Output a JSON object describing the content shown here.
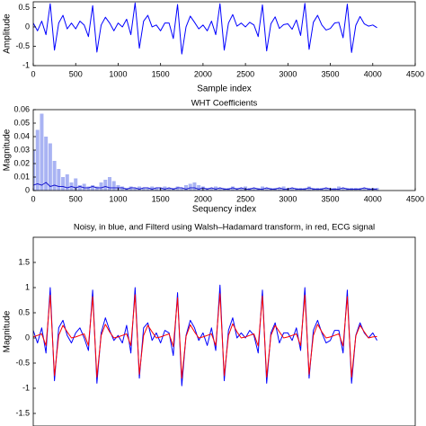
{
  "chart_data": [
    {
      "type": "line",
      "ylabel": "Amplitude",
      "xlabel": "Sample index",
      "xlim": [
        0,
        4500
      ],
      "xticks": [
        0,
        500,
        1000,
        1500,
        2000,
        2500,
        3000,
        3500,
        4000,
        4500
      ],
      "ylim": [
        -1,
        0.65
      ],
      "yticks": [
        -1,
        -0.5,
        0,
        0.5
      ],
      "grid": false,
      "x": [
        0,
        50,
        100,
        150,
        200,
        250,
        300,
        350,
        400,
        450,
        500,
        550,
        600,
        650,
        700,
        750,
        800,
        850,
        900,
        950,
        1000,
        1050,
        1100,
        1150,
        1200,
        1250,
        1300,
        1350,
        1400,
        1450,
        1500,
        1550,
        1600,
        1650,
        1700,
        1750,
        1800,
        1850,
        1900,
        1950,
        2000,
        2050,
        2100,
        2150,
        2200,
        2250,
        2300,
        2350,
        2400,
        2450,
        2500,
        2550,
        2600,
        2650,
        2700,
        2750,
        2800,
        2850,
        2900,
        2950,
        3000,
        3050,
        3100,
        3150,
        3200,
        3250,
        3300,
        3350,
        3400,
        3450,
        3500,
        3550,
        3600,
        3650,
        3700,
        3750,
        3800,
        3850,
        3900,
        3950,
        4000,
        4050
      ],
      "series": [
        {
          "color": "#0000ff",
          "mark": "line",
          "values": [
            0.1,
            -0.1,
            0.15,
            -0.2,
            0.6,
            -0.6,
            0.1,
            0.3,
            -0.05,
            0.1,
            -0.05,
            0.15,
            0.05,
            -0.25,
            0.55,
            -0.65,
            0.05,
            0.25,
            0.1,
            -0.1,
            0.1,
            0.0,
            0.2,
            -0.2,
            0.62,
            -0.55,
            0.15,
            0.3,
            0.0,
            0.05,
            -0.1,
            0.1,
            0.1,
            -0.3,
            0.58,
            -0.7,
            0.0,
            0.28,
            0.12,
            -0.05,
            0.05,
            -0.1,
            0.15,
            -0.2,
            0.6,
            -0.6,
            0.1,
            0.32,
            0.02,
            0.1,
            0.0,
            0.12,
            0.05,
            -0.25,
            0.57,
            -0.62,
            0.08,
            0.26,
            -0.04,
            0.06,
            0.08,
            -0.06,
            0.18,
            -0.22,
            0.61,
            -0.58,
            0.12,
            0.3,
            0.05,
            -0.08,
            -0.04,
            0.1,
            0.12,
            -0.28,
            0.59,
            -0.66,
            0.04,
            0.27,
            0.08,
            0.02,
            0.05,
            -0.02
          ]
        }
      ]
    },
    {
      "type": "line",
      "title": "WHT Coefficients",
      "ylabel": "Magnitude",
      "xlabel": "Sequency index",
      "xlim": [
        0,
        4500
      ],
      "xticks": [
        0,
        500,
        1000,
        1500,
        2000,
        2500,
        3000,
        3500,
        4000,
        4500
      ],
      "ylim": [
        0,
        0.06
      ],
      "yticks": [
        0,
        0.01,
        0.02,
        0.03,
        0.04,
        0.05,
        0.06
      ],
      "grid": false,
      "x": [
        0,
        50,
        100,
        150,
        200,
        250,
        300,
        350,
        400,
        450,
        500,
        550,
        600,
        650,
        700,
        750,
        800,
        850,
        900,
        950,
        1000,
        1050,
        1100,
        1150,
        1200,
        1250,
        1300,
        1350,
        1400,
        1450,
        1500,
        1550,
        1600,
        1650,
        1700,
        1750,
        1800,
        1850,
        1900,
        1950,
        2000,
        2050,
        2100,
        2150,
        2200,
        2250,
        2300,
        2350,
        2400,
        2450,
        2500,
        2550,
        2600,
        2650,
        2700,
        2750,
        2800,
        2850,
        2900,
        2950,
        3000,
        3050,
        3100,
        3150,
        3200,
        3250,
        3300,
        3350,
        3400,
        3450,
        3500,
        3550,
        3600,
        3650,
        3700,
        3750,
        3800,
        3850,
        3900,
        3950,
        4000,
        4050
      ],
      "series": [
        {
          "color": "#a9b3f3",
          "mark": "stem",
          "values": [
            0.03,
            0.045,
            0.057,
            0.04,
            0.035,
            0.022,
            0.016,
            0.01,
            0.012,
            0.006,
            0.009,
            0.004,
            0.005,
            0.003,
            0.004,
            0.003,
            0.006,
            0.008,
            0.01,
            0.007,
            0.004,
            0.003,
            0.002,
            0.003,
            0.002,
            0.003,
            0.002,
            0.002,
            0.003,
            0.002,
            0.002,
            0.003,
            0.002,
            0.002,
            0.003,
            0.002,
            0.004,
            0.005,
            0.006,
            0.004,
            0.003,
            0.002,
            0.002,
            0.003,
            0.002,
            0.002,
            0.002,
            0.003,
            0.002,
            0.002,
            0.003,
            0.002,
            0.002,
            0.002,
            0.003,
            0.002,
            0.002,
            0.002,
            0.002,
            0.003,
            0.002,
            0.002,
            0.002,
            0.002,
            0.002,
            0.003,
            0.002,
            0.002,
            0.002,
            0.002,
            0.002,
            0.002,
            0.003,
            0.002,
            0.002,
            0.002,
            0.002,
            0.002,
            0.002,
            0.002,
            0.002,
            0.002
          ]
        },
        {
          "color": "#1a1ad0",
          "mark": "line",
          "values": [
            0.004,
            0.005,
            0.004,
            0.006,
            0.003,
            0.004,
            0.003,
            0.003,
            0.002,
            0.003,
            0.002,
            0.003,
            0.002,
            0.002,
            0.003,
            0.002,
            0.002,
            0.003,
            0.002,
            0.002,
            0.002,
            0.002,
            0.001,
            0.002,
            0.002,
            0.001,
            0.002,
            0.002,
            0.001,
            0.002,
            0.002,
            0.001,
            0.002,
            0.001,
            0.002,
            0.002,
            0.001,
            0.002,
            0.002,
            0.001,
            0.002,
            0.001,
            0.002,
            0.001,
            0.002,
            0.001,
            0.001,
            0.002,
            0.001,
            0.002,
            0.001,
            0.001,
            0.002,
            0.001,
            0.001,
            0.002,
            0.001,
            0.001,
            0.002,
            0.001,
            0.001,
            0.002,
            0.001,
            0.001,
            0.001,
            0.002,
            0.001,
            0.001,
            0.001,
            0.002,
            0.001,
            0.001,
            0.001,
            0.002,
            0.001,
            0.001,
            0.001,
            0.001,
            0.002,
            0.001,
            0.001,
            0.001
          ]
        }
      ]
    },
    {
      "type": "line",
      "title": "Noisy, in blue, and Filterd using Walsh–Hadamard transform, in red, ECG signal",
      "ylabel": "Magnitude",
      "xlim": [
        0,
        4500
      ],
      "ylim": [
        -1.75,
        2
      ],
      "yticks": [
        -1.5,
        -1,
        -0.5,
        0,
        0.5,
        1,
        1.5
      ],
      "grid": false,
      "x": [
        0,
        50,
        100,
        150,
        200,
        250,
        300,
        350,
        400,
        450,
        500,
        550,
        600,
        650,
        700,
        750,
        800,
        850,
        900,
        950,
        1000,
        1050,
        1100,
        1150,
        1200,
        1250,
        1300,
        1350,
        1400,
        1450,
        1500,
        1550,
        1600,
        1650,
        1700,
        1750,
        1800,
        1850,
        1900,
        1950,
        2000,
        2050,
        2100,
        2150,
        2200,
        2250,
        2300,
        2350,
        2400,
        2450,
        2500,
        2550,
        2600,
        2650,
        2700,
        2750,
        2800,
        2850,
        2900,
        2950,
        3000,
        3050,
        3100,
        3150,
        3200,
        3250,
        3300,
        3350,
        3400,
        3450,
        3500,
        3550,
        3600,
        3650,
        3700,
        3750,
        3800,
        3850,
        3900,
        3950,
        4000,
        4050
      ],
      "series": [
        {
          "color": "#0000ff",
          "mark": "line",
          "values": [
            0.15,
            -0.1,
            0.2,
            -0.3,
            1.0,
            -0.85,
            0.2,
            0.35,
            0.05,
            -0.1,
            0.1,
            0.2,
            0.0,
            -0.25,
            0.95,
            -0.9,
            0.1,
            0.4,
            0.15,
            -0.05,
            0.05,
            -0.1,
            0.25,
            -0.3,
            1.0,
            -0.8,
            0.2,
            0.3,
            -0.05,
            0.1,
            -0.1,
            0.15,
            0.1,
            -0.35,
            0.9,
            -0.95,
            0.05,
            0.35,
            0.2,
            -0.05,
            0.1,
            -0.15,
            0.2,
            -0.25,
            1.05,
            -0.85,
            0.15,
            0.4,
            0.0,
            0.1,
            0.0,
            0.15,
            0.05,
            -0.3,
            0.95,
            -0.9,
            0.1,
            0.3,
            -0.1,
            0.1,
            0.1,
            -0.05,
            0.2,
            -0.25,
            1.0,
            -0.8,
            0.15,
            0.35,
            0.1,
            -0.1,
            -0.05,
            0.15,
            0.15,
            -0.3,
            0.95,
            -0.9,
            0.05,
            0.3,
            0.1,
            0.0,
            0.1,
            -0.05
          ]
        },
        {
          "color": "#ff0000",
          "mark": "line",
          "values": [
            0.02,
            0.05,
            0.08,
            -0.15,
            0.85,
            -0.75,
            0.05,
            0.25,
            0.12,
            0.0,
            0.02,
            0.05,
            0.08,
            -0.15,
            0.82,
            -0.78,
            0.05,
            0.27,
            0.12,
            0.0,
            0.02,
            0.05,
            0.08,
            -0.15,
            0.86,
            -0.72,
            0.05,
            0.25,
            0.12,
            0.0,
            0.02,
            0.05,
            0.08,
            -0.17,
            0.8,
            -0.8,
            0.03,
            0.26,
            0.12,
            0.0,
            0.02,
            0.05,
            0.08,
            -0.15,
            0.88,
            -0.75,
            0.05,
            0.28,
            0.12,
            0.0,
            0.02,
            0.05,
            0.08,
            -0.16,
            0.83,
            -0.78,
            0.05,
            0.25,
            0.12,
            0.0,
            0.02,
            0.05,
            0.08,
            -0.15,
            0.85,
            -0.72,
            0.05,
            0.27,
            0.12,
            0.0,
            0.02,
            0.05,
            0.08,
            -0.16,
            0.82,
            -0.78,
            0.04,
            0.25,
            0.12,
            0.0,
            0.02,
            0.03
          ]
        }
      ]
    }
  ]
}
